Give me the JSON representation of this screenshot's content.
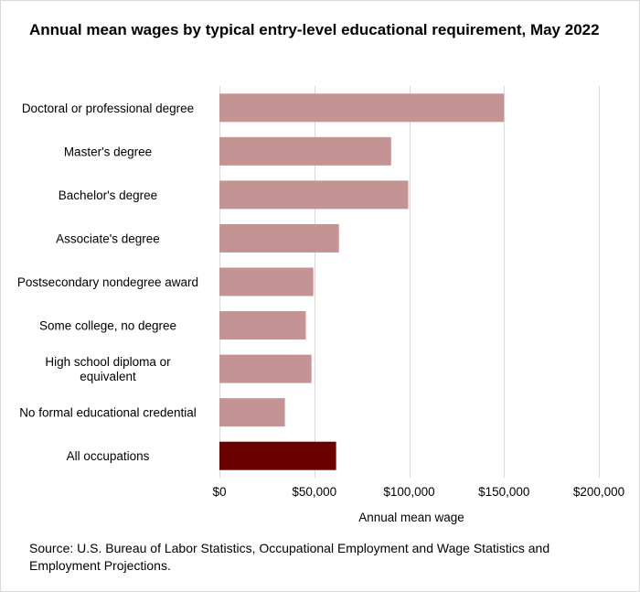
{
  "title": "Annual mean wages by typical entry-level educational requirement, May 2022",
  "source": "Source: U.S. Bureau of Labor Statistics, Occupational Employment and Wage Statistics and Employment Projections.",
  "colors": {
    "bar": "#c49494",
    "highlight": "#6b0000",
    "grid": "#d9d9d9"
  },
  "chart_data": {
    "type": "bar",
    "orientation": "horizontal",
    "title": "Annual mean wages by typical entry-level educational requirement, May 2022",
    "xlabel": "Annual mean wage",
    "ylabel": "",
    "xlim": [
      0,
      200000
    ],
    "grid": true,
    "legend": "none",
    "xticks": [
      "$0",
      "$50,000",
      "$100,000",
      "$150,000",
      "$200,000"
    ],
    "categories": [
      [
        "Doctoral or professional degree"
      ],
      [
        "Master's degree"
      ],
      [
        "Bachelor's degree"
      ],
      [
        "Associate's degree"
      ],
      [
        "Postsecondary nondegree award"
      ],
      [
        "Some college, no degree"
      ],
      [
        "High school diploma or",
        "equivalent"
      ],
      [
        "No formal educational credential"
      ],
      [
        "All occupations"
      ]
    ],
    "values": [
      150000,
      90500,
      99500,
      63000,
      49500,
      45500,
      48500,
      34500,
      61500
    ],
    "highlight_index": 8
  }
}
